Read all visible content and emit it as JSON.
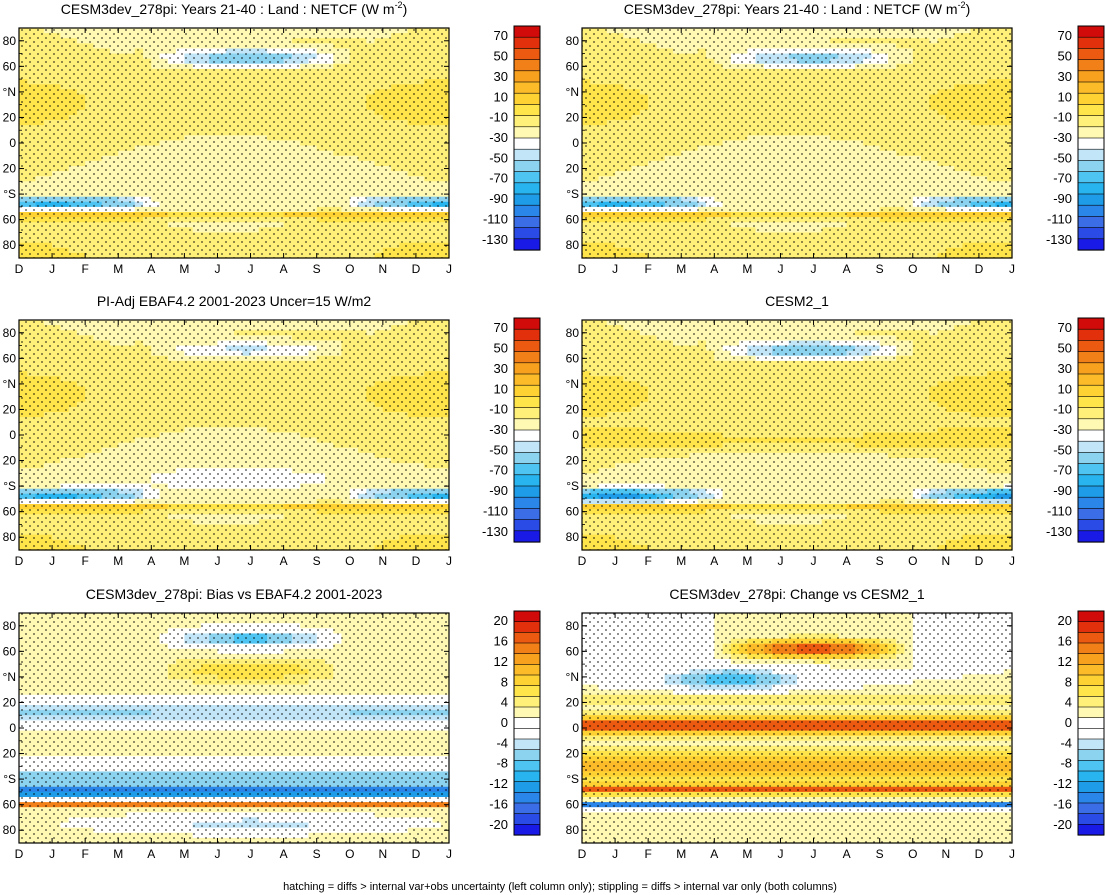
{
  "footer": "hatching = diffs > internal var+obs uncertainty (left column only); stippling = diffs > internal var only (both columns)",
  "palettes": {
    "abs": [
      "#1a1ae6",
      "#2b4be6",
      "#3b6ee6",
      "#2a86e8",
      "#1e9ce8",
      "#27b4ef",
      "#4dc4f2",
      "#8cd3f0",
      "#c2e6f7",
      "#ffffff",
      "#fff9b3",
      "#fff07a",
      "#ffe44a",
      "#ffd233",
      "#fcbc2a",
      "#f7a11e",
      "#f28018",
      "#ec5a12",
      "#e3300c",
      "#d10a0a"
    ],
    "diff": [
      "#1a1ae6",
      "#2b4be6",
      "#3b6ee6",
      "#2a86e8",
      "#1e9ce8",
      "#27b4ef",
      "#4dc4f2",
      "#8cd3f0",
      "#c2e6f7",
      "#ffffff",
      "#ffffff",
      "#fff9b3",
      "#fff07a",
      "#ffe44a",
      "#ffd233",
      "#fcbc2a",
      "#f7a11e",
      "#f28018",
      "#ec5a12",
      "#e3300c",
      "#d10a0a"
    ]
  },
  "chart_data": [
    {
      "type": "heatmap",
      "title": "CESM3dev_278pi: Years 21-40 : Land : NETCF (W m",
      "title_sup": "-2",
      "title_end": ")",
      "x_ticks": [
        "D",
        "J",
        "F",
        "M",
        "A",
        "M",
        "J",
        "J",
        "A",
        "S",
        "O",
        "N",
        "D",
        "J"
      ],
      "y_ticks": [
        "80",
        "60",
        "°N",
        "20",
        "0",
        "20",
        "°S",
        "60",
        "80"
      ],
      "colorbar_labels": [
        "70",
        "50",
        "30",
        "10",
        "-10",
        "-30",
        "-50",
        "-70",
        "-90",
        "-110",
        "-130"
      ],
      "palette": "abs",
      "latitudes": [
        -90,
        -80,
        -70,
        -60,
        -50,
        -40,
        -30,
        -20,
        -10,
        0,
        10,
        20,
        30,
        40,
        50,
        60,
        70,
        80,
        90
      ],
      "months": [
        "Dec",
        "Jan",
        "Feb",
        "Mar",
        "Apr",
        "May",
        "Jun",
        "Jul",
        "Aug",
        "Sep",
        "Oct",
        "Nov",
        "Dec",
        "Jan"
      ],
      "blue_cell": {
        "lat_range": [
          55,
          75
        ],
        "months": "May-Aug",
        "value": -60
      },
      "blue_band": {
        "lat_range": [
          -52,
          -42
        ],
        "months": "Oct-Mar",
        "value": -60
      },
      "background": "about -10 to -30 (yellow)"
    },
    {
      "type": "heatmap",
      "title": "CESM3dev_278pi: Years 21-40 : Land : NETCF (W m",
      "title_sup": "-2",
      "title_end": ")",
      "x_ticks": [
        "D",
        "J",
        "F",
        "M",
        "A",
        "M",
        "J",
        "J",
        "A",
        "S",
        "O",
        "N",
        "D",
        "J"
      ],
      "y_ticks": [
        "80",
        "60",
        "°N",
        "20",
        "0",
        "20",
        "°S",
        "60",
        "80"
      ],
      "colorbar_labels": [
        "70",
        "50",
        "30",
        "10",
        "-10",
        "-30",
        "-50",
        "-70",
        "-90",
        "-110",
        "-130"
      ],
      "palette": "abs",
      "blue_cell": {
        "lat_range": [
          55,
          75
        ],
        "months": "May-Aug",
        "value": -50
      },
      "blue_band": {
        "lat_range": [
          -52,
          -42
        ],
        "months": "Oct-Mar",
        "value": -60
      }
    },
    {
      "type": "heatmap",
      "title": "PI-Adj EBAF4.2 2001-2023 Uncer=15 W/m2",
      "title_sup": "",
      "title_end": "",
      "x_ticks": [
        "D",
        "J",
        "F",
        "M",
        "A",
        "M",
        "J",
        "J",
        "A",
        "S",
        "O",
        "N",
        "D",
        "J"
      ],
      "y_ticks": [
        "80",
        "60",
        "°N",
        "20",
        "0",
        "20",
        "°S",
        "60",
        "80"
      ],
      "colorbar_labels": [
        "70",
        "50",
        "30",
        "10",
        "-10",
        "-30",
        "-50",
        "-70",
        "-90",
        "-110",
        "-130"
      ],
      "palette": "abs",
      "blue_cell": {
        "lat_range": [
          55,
          75
        ],
        "months": "Jun-Aug",
        "value": -40
      },
      "blue_band": {
        "lat_range": [
          -52,
          -42
        ],
        "months": "Oct-Mar",
        "value": -60
      }
    },
    {
      "type": "heatmap",
      "title": "CESM2_1",
      "title_sup": "",
      "title_end": "",
      "x_ticks": [
        "D",
        "J",
        "F",
        "M",
        "A",
        "M",
        "J",
        "J",
        "A",
        "S",
        "O",
        "N",
        "D",
        "J"
      ],
      "y_ticks": [
        "80",
        "60",
        "°N",
        "20",
        "0",
        "20",
        "°S",
        "60",
        "80"
      ],
      "colorbar_labels": [
        "70",
        "50",
        "30",
        "10",
        "-10",
        "-30",
        "-50",
        "-70",
        "-90",
        "-110",
        "-130"
      ],
      "palette": "abs",
      "blue_cell": {
        "lat_range": [
          55,
          75
        ],
        "months": "May-Aug",
        "value": -60
      },
      "blue_band": {
        "lat_range": [
          -52,
          -42
        ],
        "months": "Oct-Mar",
        "value": -70
      }
    },
    {
      "type": "heatmap",
      "title": "CESM3dev_278pi: Bias vs EBAF4.2 2001-2023",
      "title_sup": "",
      "title_end": "",
      "x_ticks": [
        "D",
        "J",
        "F",
        "M",
        "A",
        "M",
        "J",
        "J",
        "A",
        "S",
        "O",
        "N",
        "D",
        "J"
      ],
      "y_ticks": [
        "80",
        "60",
        "°N",
        "20",
        "0",
        "20",
        "°S",
        "60",
        "80"
      ],
      "colorbar_labels": [
        "20",
        "16",
        "12",
        "8",
        "4",
        "0",
        "-4",
        "-8",
        "-12",
        "-16",
        "-20"
      ],
      "palette": "diff",
      "features": "negative bias bands at 0-20N and 30-55S, strong negative at 60-75N Jun-Aug, red line at 60S"
    },
    {
      "type": "heatmap",
      "title": "CESM3dev_278pi: Change vs CESM2_1",
      "title_sup": "",
      "title_end": "",
      "x_ticks": [
        "D",
        "J",
        "F",
        "M",
        "A",
        "M",
        "J",
        "J",
        "A",
        "S",
        "O",
        "N",
        "D",
        "J"
      ],
      "y_ticks": [
        "80",
        "60",
        "°N",
        "20",
        "0",
        "20",
        "°S",
        "60",
        "80"
      ],
      "colorbar_labels": [
        "20",
        "16",
        "12",
        "8",
        "4",
        "0",
        "-4",
        "-8",
        "-12",
        "-16",
        "-20"
      ],
      "palette": "diff",
      "features": "strong positive change 0-10N and 30-50S, positive cell 55-70N Jul-Aug, negative cell 30-50N Apr-May"
    }
  ]
}
